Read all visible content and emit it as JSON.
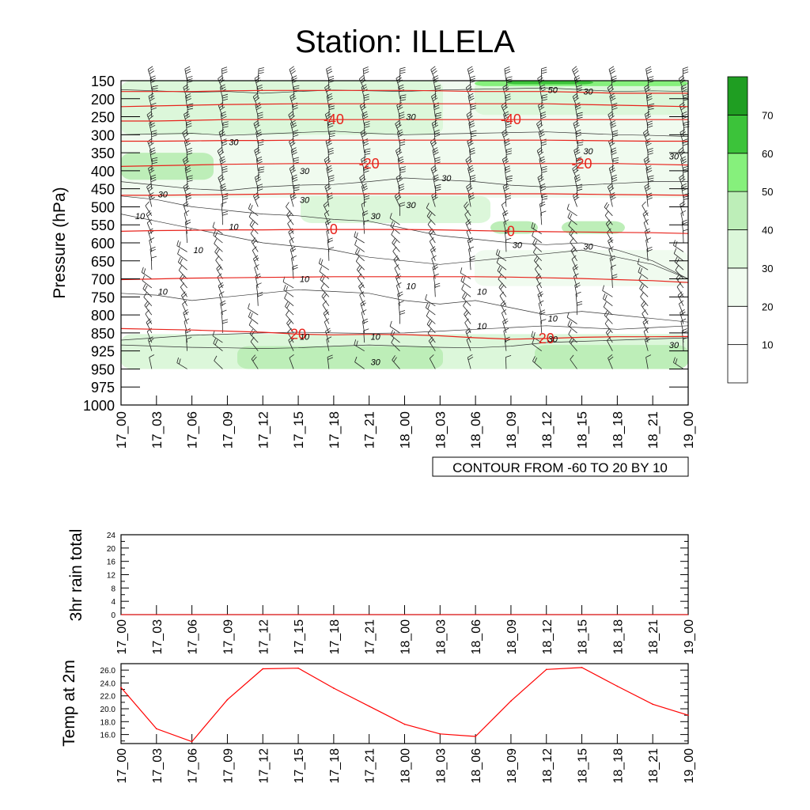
{
  "title": "Station: ILLELA",
  "time_labels": [
    "17_00",
    "17_03",
    "17_06",
    "17_09",
    "17_12",
    "17_15",
    "17_18",
    "17_21",
    "18_00",
    "18_03",
    "18_06",
    "18_09",
    "18_12",
    "18_15",
    "18_18",
    "18_21",
    "19_00"
  ],
  "colors": {
    "temp_line": "#ff0000",
    "isotherm": "#e8231c",
    "rh_fills": [
      "#ffffff",
      "#ffffff",
      "#f0fbef",
      "#dcf7da",
      "#bdeeb8",
      "#86f07c",
      "#3cc33a",
      "#1f9e22"
    ]
  },
  "chart_data": [
    {
      "type": "heatmap",
      "name": "upper-air cross-section",
      "ylabel": "Pressure (hPa)",
      "pressure_levels": [
        150,
        200,
        250,
        300,
        350,
        400,
        450,
        500,
        550,
        600,
        650,
        700,
        750,
        800,
        850,
        925,
        950,
        975,
        1000
      ],
      "x_categories": [
        "17_00",
        "17_03",
        "17_06",
        "17_09",
        "17_12",
        "17_15",
        "17_18",
        "17_21",
        "18_00",
        "18_03",
        "18_06",
        "18_09",
        "18_12",
        "18_15",
        "18_18",
        "18_21",
        "19_00"
      ],
      "legend": {
        "labels": [
          "10",
          "20",
          "30",
          "40",
          "50",
          "60",
          "70"
        ],
        "levels": [
          10,
          20,
          30,
          40,
          50,
          60,
          70,
          80
        ],
        "placement": "right"
      },
      "contour_note": "CONTOUR FROM -60 TO 20 BY 10",
      "isotherms": [
        {
          "value": -40,
          "label": "-40",
          "label_at": [
            "17_18",
            "18_09"
          ],
          "pressure": [
            262,
            262,
            260,
            258,
            258,
            258,
            258,
            258,
            258,
            258,
            258,
            258,
            258,
            258,
            258,
            258,
            258
          ]
        },
        {
          "value": -20,
          "label": "-20",
          "label_at": [
            "17_21",
            "18_15"
          ],
          "pressure": [
            388,
            386,
            384,
            382,
            381,
            380,
            380,
            380,
            380,
            380,
            380,
            380,
            380,
            380,
            380,
            382,
            384
          ]
        },
        {
          "value": 0,
          "label": "0",
          "label_at": [
            "17_18",
            "18_09"
          ],
          "pressure": [
            568,
            566,
            565,
            564,
            564,
            563,
            563,
            563,
            563,
            564,
            566,
            568,
            569,
            570,
            571,
            572,
            574
          ]
        },
        {
          "value": 20,
          "label": "20",
          "label_at": [
            "17_15",
            "18_12"
          ],
          "pressure": [
            838,
            840,
            842,
            845,
            848,
            855,
            858,
            856,
            857,
            862,
            870,
            876,
            873,
            868,
            866,
            866,
            865
          ]
        }
      ],
      "isotherm_extra": [
        {
          "label": "-40",
          "pressure": [
            180,
            180,
            180,
            178,
            177,
            177,
            177,
            177,
            177,
            178,
            180,
            180,
            180,
            182,
            185,
            185,
            185
          ]
        },
        {
          "label": "-40",
          "pressure": [
            222,
            220,
            218,
            216,
            215,
            214,
            214,
            214,
            214,
            214,
            214,
            214,
            214,
            216,
            218,
            220,
            222
          ]
        },
        {
          "label": "0",
          "pressure": [
            318,
            318,
            317,
            316,
            316,
            315,
            315,
            315,
            315,
            315,
            315,
            315,
            315,
            316,
            317,
            318,
            318
          ]
        },
        {
          "label": "20",
          "pressure": [
            468,
            468,
            467,
            466,
            465,
            464,
            464,
            464,
            464,
            464,
            464,
            464,
            464,
            465,
            466,
            467,
            468
          ]
        },
        {
          "label": "20",
          "pressure": [
            702,
            700,
            698,
            697,
            696,
            695,
            694,
            694,
            694,
            694,
            694,
            695,
            697,
            699,
            702,
            705,
            710
          ]
        }
      ],
      "rh_contour_labels": [
        {
          "text": "30",
          "x": "18_00",
          "p": 250
        },
        {
          "text": "50",
          "x": "18_12",
          "p": 175
        },
        {
          "text": "30",
          "x": "18_15",
          "p": 180
        },
        {
          "text": "30",
          "x": "17_09",
          "p": 320
        },
        {
          "text": "30",
          "x": "17_15",
          "p": 400
        },
        {
          "text": "30",
          "x": "18_15",
          "p": 345
        },
        {
          "text": "30",
          "x": "19_00",
          "p": 360
        },
        {
          "text": "30",
          "x": "18_03",
          "p": 420
        },
        {
          "text": "30",
          "x": "17_03",
          "p": 465
        },
        {
          "text": "30",
          "x": "17_15",
          "p": 480
        },
        {
          "text": "30",
          "x": "18_00",
          "p": 495
        },
        {
          "text": "30",
          "x": "17_21",
          "p": 525
        },
        {
          "text": "10",
          "x": "17_00",
          "p": 525
        },
        {
          "text": "10",
          "x": "17_09",
          "p": 555
        },
        {
          "text": "10",
          "x": "17_06",
          "p": 620
        },
        {
          "text": "30",
          "x": "18_09",
          "p": 605
        },
        {
          "text": "30",
          "x": "18_15",
          "p": 610
        },
        {
          "text": "10",
          "x": "17_15",
          "p": 700
        },
        {
          "text": "10",
          "x": "18_00",
          "p": 720
        },
        {
          "text": "10",
          "x": "17_03",
          "p": 735
        },
        {
          "text": "10",
          "x": "18_06",
          "p": 735
        },
        {
          "text": "10",
          "x": "18_12",
          "p": 810
        },
        {
          "text": "10",
          "x": "18_06",
          "p": 830
        },
        {
          "text": "10",
          "x": "17_15",
          "p": 865
        },
        {
          "text": "10",
          "x": "17_21",
          "p": 865
        },
        {
          "text": "30",
          "x": "18_12",
          "p": 875
        },
        {
          "text": "30",
          "x": "17_21",
          "p": 940
        },
        {
          "text": "30",
          "x": "19_00",
          "p": 900
        }
      ]
    },
    {
      "type": "line",
      "name": "3hr rain total",
      "ylabel": "3hr rain total",
      "x": [
        "17_00",
        "17_03",
        "17_06",
        "17_09",
        "17_12",
        "17_15",
        "17_18",
        "17_21",
        "18_00",
        "18_03",
        "18_06",
        "18_09",
        "18_12",
        "18_15",
        "18_18",
        "18_21",
        "19_00"
      ],
      "values": [
        0,
        0,
        0,
        0,
        0,
        0,
        0,
        0,
        0,
        0,
        0,
        0,
        0,
        0,
        0,
        0,
        0
      ],
      "yticks": [
        "0",
        "4",
        "8",
        "12",
        "16",
        "20",
        "24"
      ],
      "ylim": [
        0,
        24
      ]
    },
    {
      "type": "line",
      "name": "Temp at 2m",
      "ylabel": "Temp at 2m",
      "x": [
        "17_00",
        "17_03",
        "17_06",
        "17_09",
        "17_12",
        "17_15",
        "17_18",
        "17_21",
        "18_00",
        "18_03",
        "18_06",
        "18_09",
        "18_12",
        "18_15",
        "18_18",
        "18_21",
        "19_00"
      ],
      "values": [
        23.3,
        16.9,
        14.9,
        21.4,
        26.2,
        26.3,
        23.2,
        20.4,
        17.6,
        16.1,
        15.7,
        21.2,
        26.1,
        26.4,
        23.5,
        20.7,
        19.0
      ],
      "yticks": [
        "16.0",
        "18.0",
        "20.0",
        "22.0",
        "24.0",
        "26.0"
      ],
      "ylim": [
        14.6,
        27.0
      ]
    }
  ]
}
